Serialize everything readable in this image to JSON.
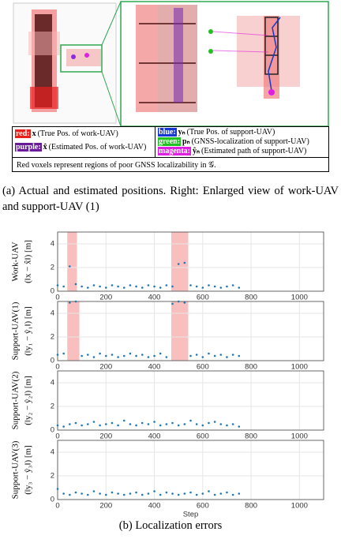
{
  "legend": {
    "items": [
      {
        "key": "red:",
        "color": "#e8201a",
        "symbol": "x",
        "text": "(True Pos. of work-UAV)"
      },
      {
        "key": "blue:",
        "color": "#1538d4",
        "symbol": "yₙ",
        "text": "(True Pos. of support-UAV)"
      },
      {
        "key": "purple:",
        "color": "#6a1b9a",
        "symbol": "x̂",
        "text": "(Estimated Pos. of work-UAV)"
      },
      {
        "key": "green:",
        "color": "#22c022",
        "symbol": "pₙ",
        "text": "(GNSS-localization of support-UAV)"
      },
      {
        "key": "magenta:",
        "color": "#e020e0",
        "symbol": "ŷₙ",
        "text": "(Estimated path of support-UAV)"
      }
    ],
    "note": "Red voxels represent regions of poor GNSS localizability in 𝒢."
  },
  "caption_a": "(a) Actual and estimated positions.  Right: Enlarged view of work-UAV and support-UAV (1)",
  "caption_b": "(b) Localization errors",
  "chart_data": [
    {
      "type": "scatter",
      "ylabel": [
        "Work-UAV",
        "(‖x − x̂‖) [m]"
      ],
      "xlim": [
        0,
        1100
      ],
      "xticks": [
        0,
        200,
        400,
        600,
        800,
        1000
      ],
      "ylim": [
        0,
        5
      ],
      "yticks": [
        0,
        2,
        4
      ],
      "grid": true,
      "shaded_regions": [
        [
          40,
          80
        ],
        [
          470,
          540
        ]
      ],
      "shade_color": "#f7a8a8",
      "x": [
        0,
        25,
        50,
        75,
        100,
        125,
        150,
        175,
        200,
        225,
        250,
        275,
        300,
        325,
        350,
        375,
        400,
        425,
        450,
        475,
        500,
        525,
        550,
        575,
        600,
        625,
        650,
        675,
        700,
        725,
        750
      ],
      "series": [
        {
          "color": "#1f77b4",
          "values": [
            0.5,
            0.4,
            2.1,
            0.6,
            0.4,
            0.3,
            0.5,
            0.4,
            0.3,
            0.5,
            0.4,
            0.3,
            0.5,
            0.4,
            0.3,
            0.5,
            0.4,
            0.3,
            0.5,
            0.4,
            2.3,
            2.4,
            0.5,
            0.4,
            0.3,
            0.5,
            0.4,
            0.3,
            0.4,
            0.5,
            0.3
          ]
        }
      ]
    },
    {
      "type": "scatter",
      "ylabel": [
        "Support-UAV(1)",
        "(‖y₁ − ŷ₁‖) [m]"
      ],
      "xlim": [
        0,
        1100
      ],
      "xticks": [
        0,
        200,
        400,
        600,
        800,
        1000
      ],
      "ylim": [
        0,
        5
      ],
      "yticks": [
        0,
        2,
        4
      ],
      "grid": true,
      "shaded_regions": [
        [
          40,
          90
        ],
        [
          470,
          540
        ]
      ],
      "shade_color": "#f7a8a8",
      "x": [
        0,
        25,
        50,
        75,
        100,
        125,
        150,
        175,
        200,
        225,
        250,
        275,
        300,
        325,
        350,
        375,
        400,
        425,
        450,
        475,
        500,
        525,
        550,
        575,
        600,
        625,
        650,
        675,
        700,
        725,
        750
      ],
      "series": [
        {
          "color": "#1f77b4",
          "values": [
            0.5,
            0.6,
            4.9,
            5.0,
            0.4,
            0.5,
            0.3,
            0.6,
            0.4,
            0.5,
            0.3,
            0.4,
            0.6,
            0.4,
            0.5,
            0.3,
            0.4,
            0.6,
            0.3,
            4.8,
            5.0,
            4.9,
            0.4,
            0.5,
            0.3,
            0.6,
            0.4,
            0.5,
            0.3,
            0.5,
            0.4
          ]
        }
      ]
    },
    {
      "type": "scatter",
      "ylabel": [
        "Support-UAV(2)",
        "(‖y₂ − ŷ₂‖) [m]"
      ],
      "xlim": [
        0,
        1100
      ],
      "xticks": [
        0,
        200,
        400,
        600,
        800,
        1000
      ],
      "ylim": [
        0,
        5
      ],
      "yticks": [
        0,
        2,
        4
      ],
      "grid": true,
      "x": [
        0,
        25,
        50,
        75,
        100,
        125,
        150,
        175,
        200,
        225,
        250,
        275,
        300,
        325,
        350,
        375,
        400,
        425,
        450,
        475,
        500,
        525,
        550,
        575,
        600,
        625,
        650,
        675,
        700,
        725,
        750
      ],
      "series": [
        {
          "color": "#1f77b4",
          "values": [
            0.4,
            0.3,
            0.5,
            0.6,
            0.4,
            0.5,
            0.7,
            0.4,
            0.5,
            0.6,
            0.4,
            0.8,
            0.5,
            0.4,
            0.6,
            0.5,
            0.7,
            0.4,
            0.5,
            0.6,
            0.4,
            0.5,
            0.8,
            0.5,
            0.4,
            0.6,
            0.7,
            0.5,
            0.4,
            0.5,
            0.3
          ]
        }
      ]
    },
    {
      "type": "scatter",
      "ylabel": [
        "Support-UAV(3)",
        "(‖y₃ − ŷ₃‖) [m]"
      ],
      "xlim": [
        0,
        1100
      ],
      "xticks": [
        0,
        200,
        400,
        600,
        800,
        1000
      ],
      "ylim": [
        0,
        5
      ],
      "yticks": [
        0,
        2,
        4
      ],
      "grid": true,
      "xlabel": "Step",
      "x": [
        0,
        25,
        50,
        75,
        100,
        125,
        150,
        175,
        200,
        225,
        250,
        275,
        300,
        325,
        350,
        375,
        400,
        425,
        450,
        475,
        500,
        525,
        550,
        575,
        600,
        625,
        650,
        675,
        700,
        725,
        750
      ],
      "series": [
        {
          "color": "#1f77b4",
          "values": [
            0.9,
            0.5,
            0.4,
            0.6,
            0.5,
            0.4,
            0.7,
            0.5,
            0.4,
            0.6,
            0.5,
            0.4,
            0.5,
            0.6,
            0.4,
            0.5,
            0.7,
            0.4,
            0.6,
            0.5,
            0.4,
            0.5,
            0.6,
            0.4,
            0.5,
            0.7,
            0.4,
            0.5,
            0.6,
            0.4,
            0.5
          ]
        }
      ]
    }
  ]
}
